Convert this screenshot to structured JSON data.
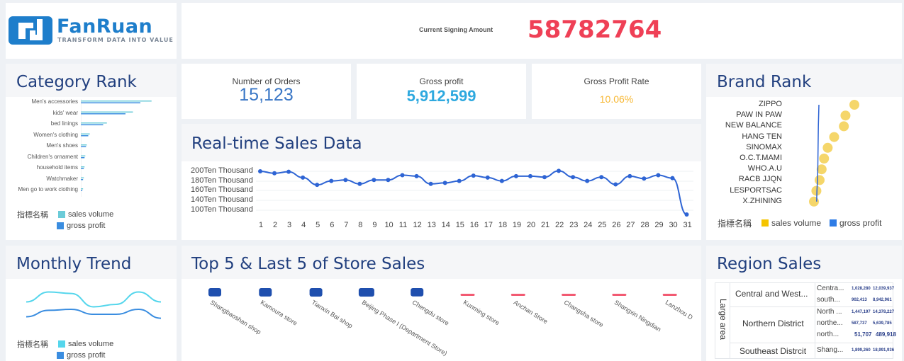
{
  "brand": {
    "name": "FanRuan",
    "tagline": "TRANSFORM DATA INTO VALUE"
  },
  "header": {
    "signing_label": "Current Signing Amount",
    "signing_value": "58782764"
  },
  "kpis": {
    "orders": {
      "label": "Number of Orders",
      "value": "15,123"
    },
    "gross_profit": {
      "label": "Gross profit",
      "value": "5,912,599"
    },
    "profit_rate": {
      "label": "Gross Profit Rate",
      "value": "10.06%"
    }
  },
  "panels": {
    "category_rank": "Category Rank",
    "brand_rank": "Brand Rank",
    "realtime": "Real-time Sales Data",
    "monthly_trend": "Monthly Trend",
    "store_sales": "Top 5 & Last 5 of Store Sales",
    "region_sales": "Region Sales"
  },
  "legend": {
    "title": "指標名稱",
    "sales_volume": "sales volume",
    "gross_profit": "gross profit"
  },
  "colors": {
    "brand_blue": "#1e7ecb",
    "title_navy": "#22407f",
    "accent_red": "#ef4056",
    "kpi_blue": "#3a77c6",
    "kpi_cyan": "#2ea9df",
    "kpi_orange": "#f7b731",
    "teal": "#6bcbd8",
    "bar_blue": "#3a8de0",
    "brand_yellow": "#f5c400",
    "line_blue": "#2e64d4"
  },
  "category_rank": {
    "categories": [
      "Men's accessories",
      "kids' wear",
      "bed linings",
      "Women's clothing",
      "Men's shoes",
      "Children's ornament",
      "household items",
      "Watchmaker",
      "Men go to work clothing"
    ],
    "sales_volume": [
      0.95,
      0.7,
      0.35,
      0.12,
      0.08,
      0.06,
      0.05,
      0.04,
      0.03
    ],
    "gross_profit": [
      0.8,
      0.6,
      0.3,
      0.1,
      0.07,
      0.05,
      0.04,
      0.03,
      0.02
    ]
  },
  "brand_rank": {
    "brands": [
      "ZIPPO",
      "PAW IN PAW",
      "NEW BALANCE",
      "HANG TEN",
      "SINOMAX",
      "O.C.T.MAMI",
      "WHO.A.U",
      "RACB JJQN",
      "LESPORTSAC",
      "X.ZHINING"
    ],
    "sales_volume": [
      1.0,
      0.78,
      0.74,
      0.5,
      0.34,
      0.25,
      0.19,
      0.14,
      0.06,
      0.0
    ],
    "gross_profit": [
      0.1,
      0.08,
      0.06,
      0.05,
      0.04,
      0.03,
      0.02,
      0.0,
      -0.04,
      -0.06
    ]
  },
  "chart_data": {
    "type": "line",
    "title": "Real-time Sales Data",
    "x": [
      1,
      2,
      3,
      4,
      5,
      6,
      7,
      8,
      9,
      10,
      11,
      12,
      13,
      14,
      15,
      16,
      17,
      18,
      19,
      20,
      21,
      22,
      23,
      24,
      25,
      26,
      27,
      28,
      29,
      30,
      31
    ],
    "yticks": [
      "200Ten Thousand",
      "180Ten Thousand",
      "160Ten Thousand",
      "140Ten Thousand",
      "100Ten Thousand"
    ],
    "values": [
      200,
      196,
      199,
      187,
      172,
      180,
      182,
      174,
      182,
      182,
      192,
      190,
      174,
      176,
      180,
      191,
      187,
      180,
      190,
      190,
      188,
      201,
      188,
      180,
      188,
      173,
      190,
      185,
      192,
      186,
      83
    ]
  },
  "monthly_trend": {
    "sales_volume": [
      0.55,
      0.75,
      0.72,
      0.45,
      0.5,
      0.75,
      0.55
    ],
    "gross_profit": [
      0.25,
      0.38,
      0.4,
      0.3,
      0.3,
      0.4,
      0.22
    ]
  },
  "store_sales": {
    "stores": [
      "Shangbaoshan shop",
      "Kamoura store",
      "Tianxin Bai shop",
      "Beijing Phase I (Department Store)",
      "Chengdu store",
      "Kunming store",
      "Anchan Store",
      "Changsha store",
      "Shangxin Ningdian",
      "Lanzhou D"
    ],
    "values": [
      0.9,
      0.95,
      1.0,
      1.0,
      0.9,
      0.1,
      0.06,
      0.1,
      0.1,
      0.12
    ],
    "groups": [
      "top",
      "top",
      "top",
      "top",
      "top",
      "last",
      "last",
      "last",
      "last",
      "last"
    ]
  },
  "region_sales": {
    "header": "Large area",
    "rows": [
      {
        "area": "Central and West...",
        "subs": [
          {
            "name": "Centra...",
            "a": "1,028,280",
            "b": "12,039,937"
          },
          {
            "name": "south...",
            "a": "902,413",
            "b": "8,942,961"
          }
        ]
      },
      {
        "area": "Northern District",
        "subs": [
          {
            "name": "North ...",
            "a": "1,447,197",
            "b": "14,378,227"
          },
          {
            "name": "northe...",
            "a": "587,737",
            "b": "5,639,785"
          },
          {
            "name": "north...",
            "a": "51,707",
            "b": "489,918"
          }
        ]
      },
      {
        "area": "Southeast Distrcit",
        "subs": [
          {
            "name": "Shang...",
            "a": "1,899,260",
            "b": "18,991,936"
          }
        ]
      }
    ]
  }
}
